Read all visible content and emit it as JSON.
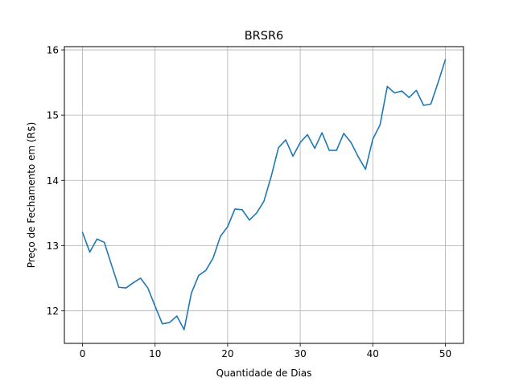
{
  "chart_data": {
    "type": "line",
    "title": "BRSR6",
    "xlabel": "Quantidade de Dias",
    "ylabel": "Preço de Fechamento em (R$)",
    "xlim": [
      -2.5,
      52.5
    ],
    "ylim": [
      11.5,
      16.05
    ],
    "xticks": [
      0,
      10,
      20,
      30,
      40,
      50
    ],
    "yticks": [
      12,
      13,
      14,
      15,
      16
    ],
    "grid": true,
    "series": [
      {
        "color": "#1f77b4",
        "x": [
          0,
          1,
          2,
          3,
          4,
          5,
          6,
          7,
          8,
          9,
          10,
          11,
          12,
          13,
          14,
          15,
          16,
          17,
          18,
          19,
          20,
          21,
          22,
          23,
          24,
          25,
          26,
          27,
          28,
          29,
          30,
          31,
          32,
          33,
          34,
          35,
          36,
          37,
          38,
          39,
          40,
          41,
          42,
          43,
          44,
          45,
          46,
          47,
          48,
          49,
          50
        ],
        "values": [
          13.2,
          12.9,
          13.1,
          13.05,
          12.7,
          12.36,
          12.35,
          12.43,
          12.5,
          12.35,
          12.07,
          11.8,
          11.82,
          11.92,
          11.71,
          12.27,
          12.54,
          12.62,
          12.81,
          13.14,
          13.29,
          13.56,
          13.55,
          13.39,
          13.5,
          13.68,
          14.06,
          14.5,
          14.62,
          14.37,
          14.58,
          14.7,
          14.49,
          14.73,
          14.46,
          14.46,
          14.72,
          14.58,
          14.36,
          14.17,
          14.63,
          14.85,
          15.44,
          15.34,
          15.37,
          15.27,
          15.38,
          15.15,
          15.17,
          15.5,
          15.85
        ]
      }
    ]
  }
}
